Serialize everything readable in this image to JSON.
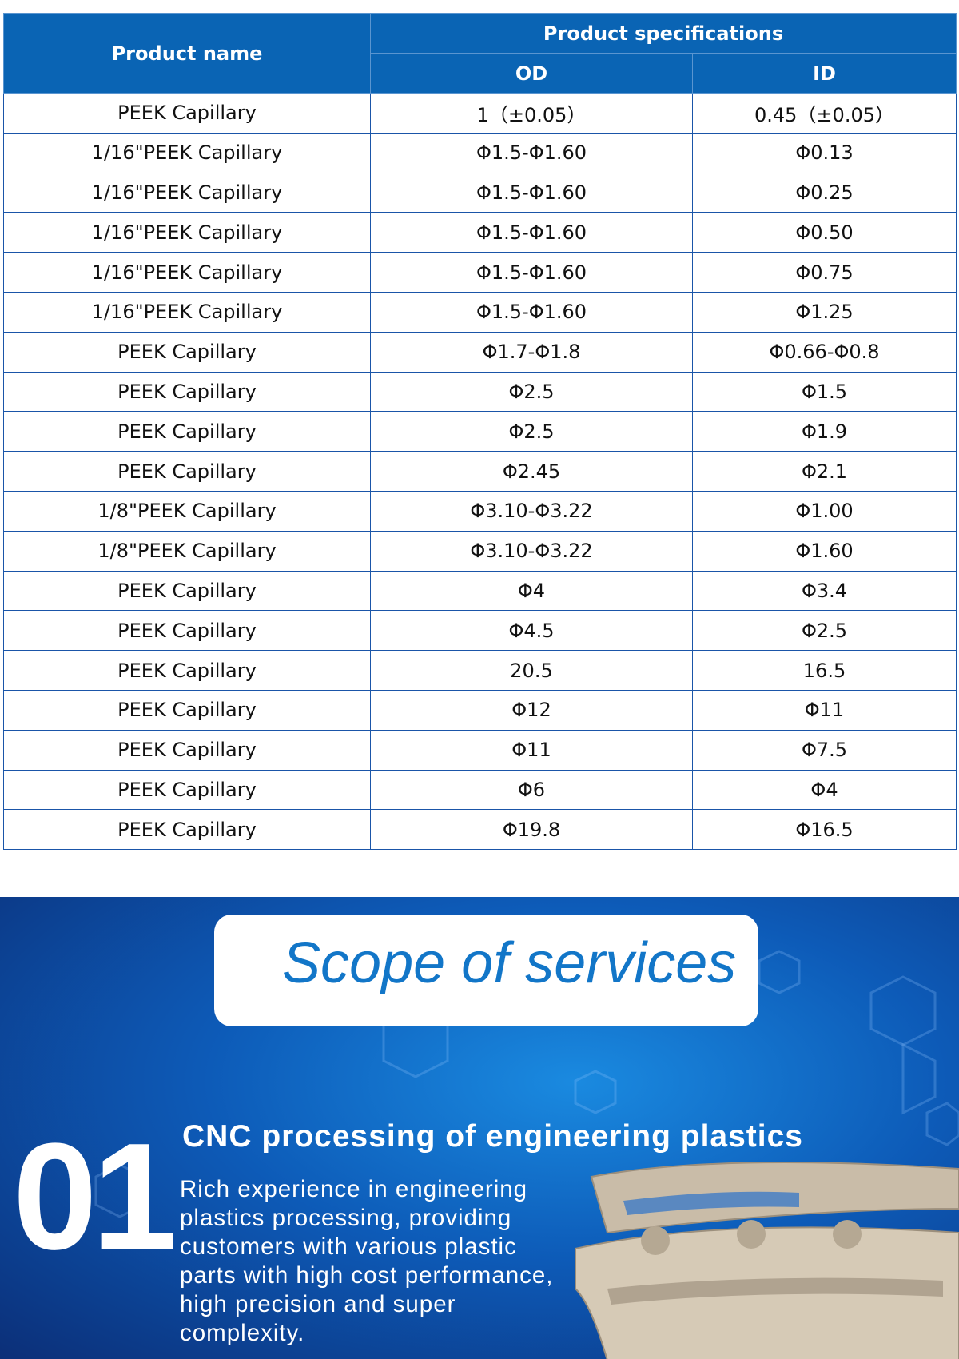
{
  "table": {
    "header": {
      "product_name": "Product name",
      "product_specifications": "Product specifications",
      "od": "OD",
      "id": "ID"
    },
    "rows": [
      [
        "PEEK Capillary",
        "1（±0.05）",
        "0.45（±0.05）"
      ],
      [
        "1/16\"PEEK Capillary",
        "Φ1.5-Φ1.60",
        "Φ0.13"
      ],
      [
        "1/16\"PEEK Capillary",
        "Φ1.5-Φ1.60",
        "Φ0.25"
      ],
      [
        "1/16\"PEEK Capillary",
        "Φ1.5-Φ1.60",
        "Φ0.50"
      ],
      [
        "1/16\"PEEK Capillary",
        "Φ1.5-Φ1.60",
        "Φ0.75"
      ],
      [
        "1/16\"PEEK Capillary",
        "Φ1.5-Φ1.60",
        "Φ1.25"
      ],
      [
        "PEEK Capillary",
        "Φ1.7-Φ1.8",
        "Φ0.66-Φ0.8"
      ],
      [
        "PEEK Capillary",
        "Φ2.5",
        "Φ1.5"
      ],
      [
        "PEEK Capillary",
        "Φ2.5",
        "Φ1.9"
      ],
      [
        "PEEK Capillary",
        "Φ2.45",
        "Φ2.1"
      ],
      [
        "1/8\"PEEK Capillary",
        "Φ3.10-Φ3.22",
        "Φ1.00"
      ],
      [
        "1/8\"PEEK Capillary",
        "Φ3.10-Φ3.22",
        "Φ1.60"
      ],
      [
        "PEEK Capillary",
        "Φ4",
        "Φ3.4"
      ],
      [
        "PEEK Capillary",
        "Φ4.5",
        "Φ2.5"
      ],
      [
        "PEEK Capillary",
        "20.5",
        "16.5"
      ],
      [
        "PEEK Capillary",
        "Φ12",
        "Φ11"
      ],
      [
        "PEEK Capillary",
        "Φ11",
        "Φ7.5"
      ],
      [
        "PEEK Capillary",
        "Φ6",
        "Φ4"
      ],
      [
        "PEEK Capillary",
        "Φ19.8",
        "Φ16.5"
      ]
    ]
  },
  "services": {
    "title": "Scope of services",
    "number": "01",
    "heading": "CNC processing of engineering plastics",
    "text": "Rich experience in engineering plastics processing, providing customers with various plastic parts with high cost performance, high precision and super complexity."
  }
}
